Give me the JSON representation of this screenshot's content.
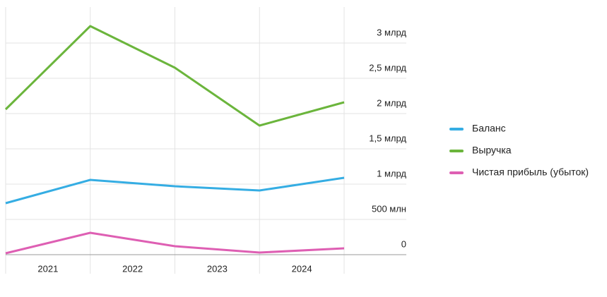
{
  "chart_data": {
    "type": "line",
    "categories": [
      "2021",
      "2022",
      "2023",
      "2024",
      null
    ],
    "series": [
      {
        "name": "Баланс",
        "color": "#35ade3",
        "values": [
          730000000,
          1060000000,
          970000000,
          910000000,
          1090000000
        ]
      },
      {
        "name": "Выручка",
        "color": "#6bb53c",
        "values": [
          2060000000,
          3240000000,
          2650000000,
          1830000000,
          2160000000
        ]
      },
      {
        "name": "Чистая прибыль (убыток)",
        "color": "#de5fb3",
        "values": [
          20000000,
          310000000,
          120000000,
          30000000,
          90000000
        ]
      }
    ],
    "ylim": [
      0,
      3500000000
    ],
    "yticks": [
      0,
      {
        "value": 500000000,
        "label": "500 млн"
      },
      {
        "value": 1000000000,
        "label": "1 млрд"
      },
      {
        "value": 1500000000,
        "label": "1,5 млрд"
      },
      {
        "value": 2000000000,
        "label": "2 млрд"
      },
      {
        "value": 2500000000,
        "label": "2,5 млрд"
      },
      {
        "value": 3000000000,
        "label": "3 млрд"
      }
    ],
    "grid": true,
    "legend": "right"
  }
}
